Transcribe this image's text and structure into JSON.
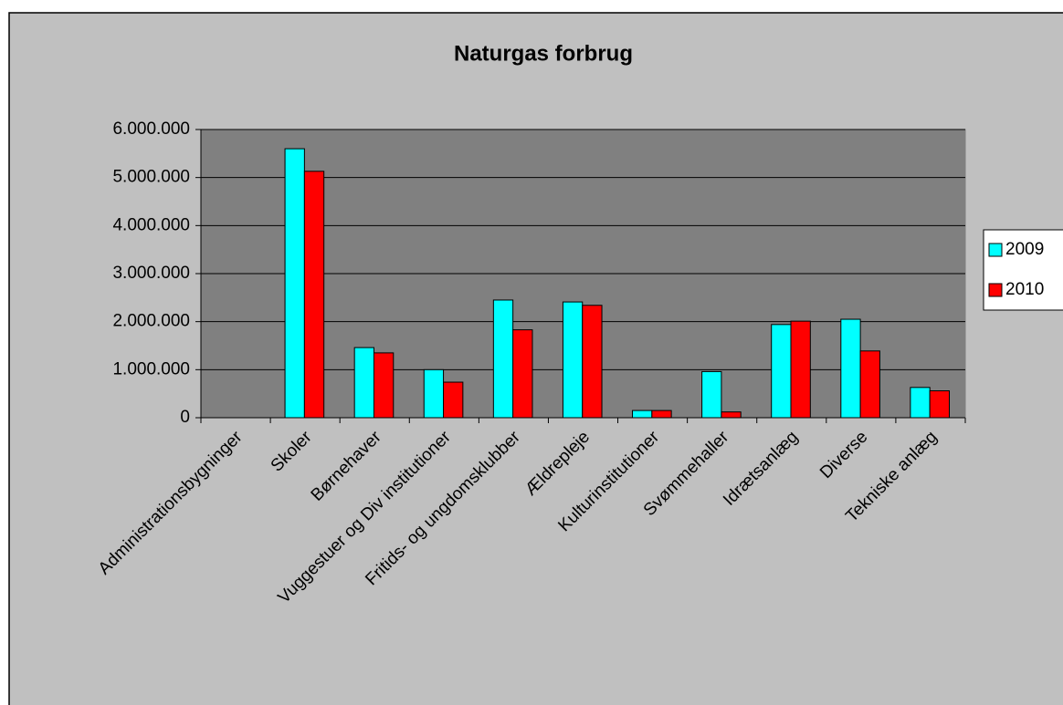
{
  "chart_data": {
    "type": "bar",
    "title": "Naturgas forbrug",
    "categories": [
      "Administrationsbygninger",
      "Skoler",
      "Børnehaver",
      "Vuggestuer og Div institutioner",
      "Fritids- og ungdomsklubber",
      "Ældrepleje",
      "Kulturinstitutioner",
      "Svømmehaller",
      "Idrætsanlæg",
      "Diverse",
      "Tekniske anlæg"
    ],
    "series": [
      {
        "name": "2009",
        "color": "#00ffff",
        "values": [
          0,
          5600000,
          1460000,
          1000000,
          2450000,
          2410000,
          150000,
          960000,
          1940000,
          2050000,
          630000
        ]
      },
      {
        "name": "2010",
        "color": "#ff0000",
        "values": [
          0,
          5130000,
          1350000,
          740000,
          1830000,
          2340000,
          150000,
          120000,
          2010000,
          1390000,
          560000
        ]
      }
    ],
    "ylim": [
      0,
      6000000
    ],
    "yticks": [
      0,
      {
        "value": 1000000,
        "label": "1.000.000"
      },
      {
        "value": 2000000,
        "label": "2.000.000"
      },
      {
        "value": 3000000,
        "label": "3.000.000"
      },
      {
        "value": 4000000,
        "label": "4.000.000"
      },
      {
        "value": 5000000,
        "label": "5.000.000"
      },
      {
        "value": 6000000,
        "label": "6.000.000"
      }
    ],
    "grid": true,
    "legend": "right"
  }
}
